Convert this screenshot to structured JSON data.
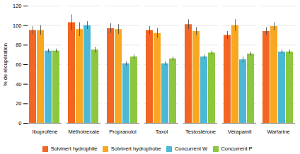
{
  "chart_data": {
    "type": "bar",
    "categories": [
      "Ibuprofène",
      "Méthotrexate",
      "Propranolol",
      "Taxol",
      "Testostérone",
      "Vérapamil",
      "Warfarine"
    ],
    "series": [
      {
        "name": "Solvinert hydrophile",
        "color": "#F26522",
        "values": [
          95,
          103,
          97,
          95,
          101,
          90,
          94
        ],
        "errors": [
          4,
          8,
          5,
          4,
          5,
          4,
          4
        ]
      },
      {
        "name": "Solvinert hydrophobe",
        "color": "#F9A620",
        "values": [
          95,
          96,
          96,
          92,
          94,
          100,
          99
        ],
        "errors": [
          5,
          7,
          5,
          5,
          4,
          6,
          4
        ]
      },
      {
        "name": "Concurrent W",
        "color": "#4DB8D4",
        "values": [
          74,
          100,
          61,
          61,
          68,
          65,
          73
        ],
        "errors": [
          2,
          4,
          2,
          2,
          2,
          3,
          2
        ]
      },
      {
        "name": "Concurrent P",
        "color": "#8DC63F",
        "values": [
          74,
          75,
          68,
          66,
          72,
          71,
          73
        ],
        "errors": [
          2,
          3,
          2,
          2,
          2,
          2,
          2
        ]
      }
    ],
    "ylabel": "% de récupération",
    "ylim": [
      0,
      120
    ],
    "yticks": [
      0,
      20,
      40,
      60,
      80,
      100,
      120
    ],
    "grid": true,
    "legend": "bottom"
  }
}
